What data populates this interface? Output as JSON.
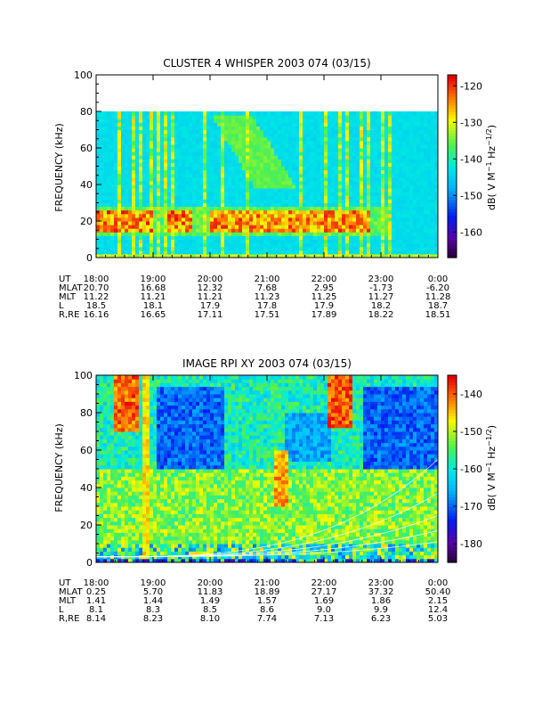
{
  "chart_data": [
    {
      "type": "heatmap",
      "title": "CLUSTER 4 WHISPER 2003 074 (03/15)",
      "ylabel": "FREQUENCY (kHz)",
      "ylim": [
        0,
        100
      ],
      "y_ticks": [
        "0",
        "20",
        "40",
        "60",
        "80",
        "100"
      ],
      "x_ticks": [
        "18:00",
        "19:00",
        "20:00",
        "21:00",
        "22:00",
        "23:00",
        "0:00"
      ],
      "colorbar": {
        "label": "dB( V M^-1 Hz^-1/2)",
        "range": [
          -167,
          -117
        ],
        "ticks": [
          "-120",
          "-130",
          "-140",
          "-150",
          "-160"
        ],
        "tick_values": [
          -120,
          -130,
          -140,
          -150,
          -160
        ]
      },
      "data_fmax_khz": 80,
      "ephemeris": [
        {
          "label": "UT",
          "values": [
            "18:00",
            "19:00",
            "20:00",
            "21:00",
            "22:00",
            "23:00",
            "0:00"
          ]
        },
        {
          "label": "MLAT",
          "values": [
            "20.70",
            "16.68",
            "12.32",
            "7.68",
            "2.95",
            "-1.73",
            "-6.20"
          ]
        },
        {
          "label": "MLT",
          "values": [
            "11.22",
            "11.21",
            "11.21",
            "11.23",
            "11.25",
            "11.27",
            "11.28"
          ]
        },
        {
          "label": "L",
          "values": [
            "18.5",
            "18.1",
            "17.9",
            "17.8",
            "17.9",
            "18.2",
            "18.7"
          ]
        },
        {
          "label": "R,RE",
          "values": [
            "16.16",
            "16.65",
            "17.11",
            "17.51",
            "17.89",
            "18.22",
            "18.51"
          ]
        }
      ]
    },
    {
      "type": "heatmap",
      "title": "IMAGE RPI XY 2003 074 (03/15)",
      "ylabel": "FREQUENCY (kHz)",
      "ylim": [
        0,
        100
      ],
      "y_ticks": [
        "0",
        "20",
        "40",
        "60",
        "80",
        "100"
      ],
      "x_ticks": [
        "18:00",
        "19:00",
        "20:00",
        "21:00",
        "22:00",
        "23:00",
        "0:00"
      ],
      "colorbar": {
        "label": "dB( V M^-1 Hz^-1/2)",
        "range": [
          -185,
          -135
        ],
        "ticks": [
          "-140",
          "-150",
          "-160",
          "-170",
          "-180"
        ],
        "tick_values": [
          -140,
          -150,
          -160,
          -170,
          -180
        ]
      },
      "ephemeris": [
        {
          "label": "UT",
          "values": [
            "18:00",
            "19:00",
            "20:00",
            "21:00",
            "22:00",
            "23:00",
            "0:00"
          ]
        },
        {
          "label": "MLAT",
          "values": [
            "0.25",
            "5.70",
            "11.83",
            "18.89",
            "27.17",
            "37.32",
            "50.40"
          ]
        },
        {
          "label": "MLT",
          "values": [
            "1.41",
            "1.44",
            "1.49",
            "1.57",
            "1.69",
            "1.86",
            "2.15"
          ]
        },
        {
          "label": "L",
          "values": [
            "8.1",
            "8.3",
            "8.5",
            "8.6",
            "9.0",
            "9.9",
            "12.4"
          ]
        },
        {
          "label": "R,RE",
          "values": [
            "8.14",
            "8.23",
            "8.10",
            "7.74",
            "7.13",
            "6.23",
            "5.03"
          ]
        }
      ]
    }
  ]
}
